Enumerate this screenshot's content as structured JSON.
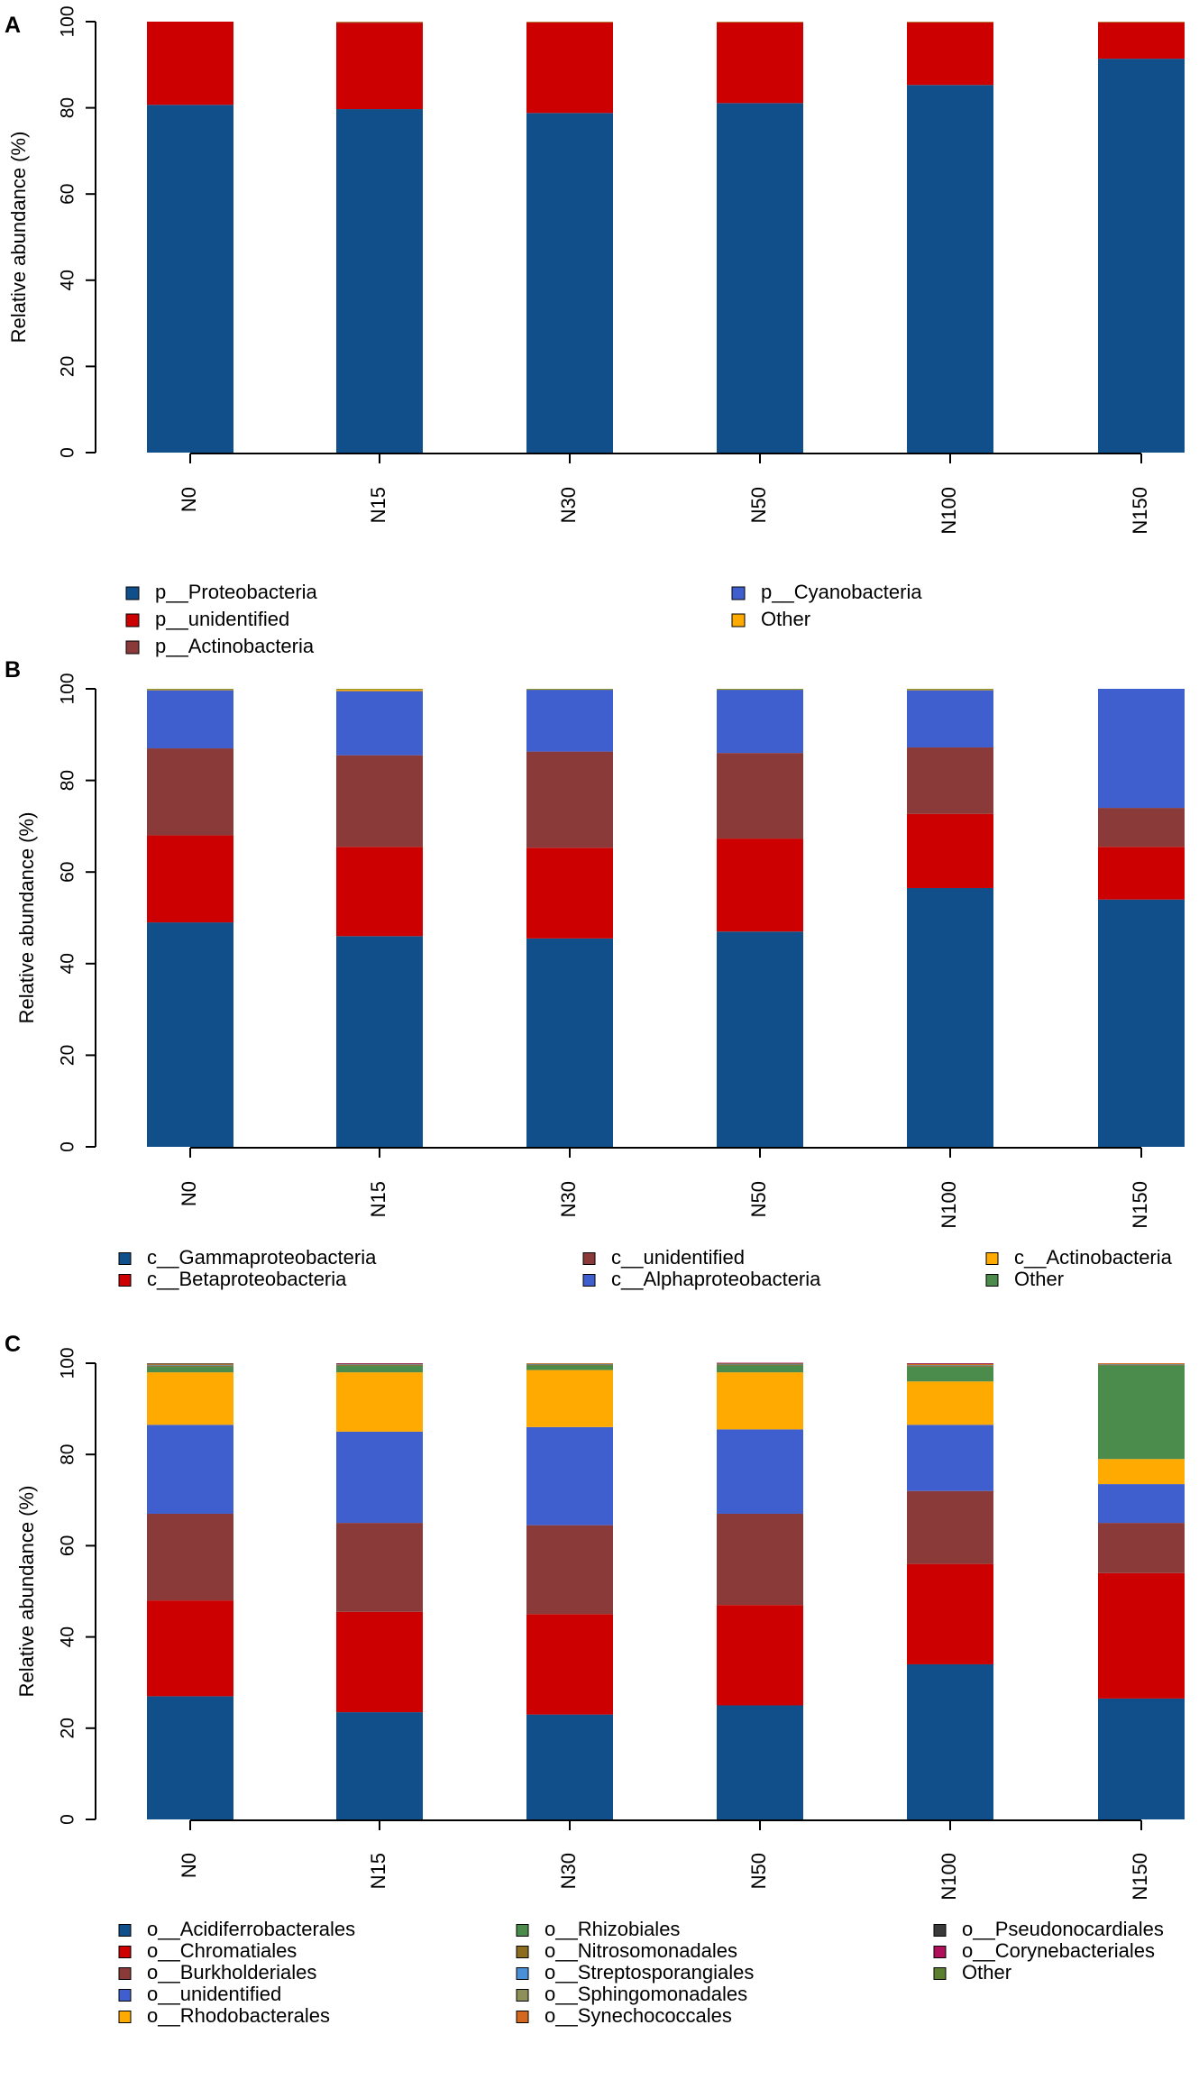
{
  "colors": {
    "axis": "#000000",
    "background": "#ffffff"
  },
  "chart_data": [
    {
      "type": "bar",
      "stacked": true,
      "panel_letter": "A",
      "categories": [
        "N0",
        "N15",
        "N30",
        "N50",
        "N100",
        "N150"
      ],
      "ylabel": "Relative abundance (%)",
      "ylim": [
        0,
        100
      ],
      "yticks": [
        "0",
        "20",
        "40",
        "60",
        "80",
        "100"
      ],
      "series": [
        {
          "name": "p__Proteobacteria",
          "color": "#114F8A",
          "values": [
            80.7,
            79.7,
            78.8,
            81.1,
            85.3,
            91.4
          ]
        },
        {
          "name": "p__unidentified",
          "color": "#CC0000",
          "values": [
            19.3,
            20.0,
            21.0,
            18.7,
            14.5,
            8.4
          ]
        },
        {
          "name": "p__Actinobacteria",
          "color": "#8B3A3A",
          "values": [
            0.0,
            0.2,
            0.1,
            0.1,
            0.1,
            0.1
          ]
        },
        {
          "name": "p__Cyanobacteria",
          "color": "#3F5FCF",
          "values": [
            0.0,
            0.05,
            0.05,
            0.05,
            0.05,
            0.05
          ]
        },
        {
          "name": "Other",
          "color": "#FFAA00",
          "values": [
            0.0,
            0.05,
            0.05,
            0.05,
            0.05,
            0.05
          ]
        }
      ],
      "legend": {
        "columns": [
          [
            "p__Proteobacteria",
            "p__unidentified",
            "p__Actinobacteria"
          ],
          [
            "p__Cyanobacteria",
            "Other"
          ]
        ]
      }
    },
    {
      "type": "bar",
      "stacked": true,
      "panel_letter": "B",
      "categories": [
        "N0",
        "N15",
        "N30",
        "N50",
        "N100",
        "N150"
      ],
      "ylabel": "Relative abundance (%)",
      "ylim": [
        0,
        100
      ],
      "yticks": [
        "0",
        "20",
        "40",
        "60",
        "80",
        "100"
      ],
      "series": [
        {
          "name": "c__Gammaproteobacteria",
          "color": "#114F8A",
          "values": [
            49.0,
            46.0,
            45.5,
            47.0,
            56.5,
            54.0
          ]
        },
        {
          "name": "c__Betaproteobacteria",
          "color": "#CC0000",
          "values": [
            19.0,
            19.5,
            19.8,
            20.3,
            16.2,
            11.5
          ]
        },
        {
          "name": "c__unidentified",
          "color": "#8B3A3A",
          "values": [
            19.0,
            20.0,
            21.0,
            18.7,
            14.5,
            8.5
          ]
        },
        {
          "name": "c__Alphaproteobacteria",
          "color": "#3F5FCF",
          "values": [
            12.7,
            14.0,
            13.5,
            13.8,
            12.5,
            26.0
          ]
        },
        {
          "name": "c__Actinobacteria",
          "color": "#FFAA00",
          "values": [
            0.2,
            0.4,
            0.1,
            0.1,
            0.2,
            0.0
          ]
        },
        {
          "name": "Other",
          "color": "#4B8B4B",
          "values": [
            0.1,
            0.1,
            0.1,
            0.1,
            0.1,
            0.0
          ]
        }
      ],
      "legend": {
        "columns": [
          [
            "c__Gammaproteobacteria",
            "c__Betaproteobacteria"
          ],
          [
            "c__unidentified",
            "c__Alphaproteobacteria"
          ],
          [
            "c__Actinobacteria",
            "Other"
          ]
        ]
      }
    },
    {
      "type": "bar",
      "stacked": true,
      "panel_letter": "C",
      "categories": [
        "N0",
        "N15",
        "N30",
        "N50",
        "N100",
        "N150"
      ],
      "ylabel": "Relative abundance (%)",
      "ylim": [
        0,
        100
      ],
      "yticks": [
        "0",
        "20",
        "40",
        "60",
        "80",
        "100"
      ],
      "series": [
        {
          "name": "o__Acidiferrobacterales",
          "color": "#114F8A",
          "values": [
            27.0,
            23.5,
            23.0,
            25.0,
            34.0,
            26.5
          ]
        },
        {
          "name": "o__Chromatiales",
          "color": "#CC0000",
          "values": [
            21.0,
            22.0,
            22.0,
            22.0,
            22.0,
            27.5
          ]
        },
        {
          "name": "o__Burkholderiales",
          "color": "#8B3A3A",
          "values": [
            19.0,
            19.5,
            19.5,
            20.0,
            16.0,
            11.0
          ]
        },
        {
          "name": "o__unidentified",
          "color": "#3F5FCF",
          "values": [
            19.5,
            20.0,
            21.5,
            18.5,
            14.5,
            8.5
          ]
        },
        {
          "name": "o__Rhodobacterales",
          "color": "#FFAA00",
          "values": [
            11.5,
            13.0,
            12.5,
            12.5,
            9.5,
            5.5
          ]
        },
        {
          "name": "o__Rhizobiales",
          "color": "#4B8B4B",
          "values": [
            1.2,
            1.4,
            1.0,
            1.5,
            3.2,
            20.5
          ]
        },
        {
          "name": "o__Nitrosomonadales",
          "color": "#8C6D1F",
          "values": [
            0.2,
            0.2,
            0.2,
            0.2,
            0.2,
            0.1
          ]
        },
        {
          "name": "o__Streptosporangiales",
          "color": "#4A90D9",
          "values": [
            0.1,
            0.1,
            0.1,
            0.1,
            0.1,
            0.1
          ]
        },
        {
          "name": "o__Sphingomonadales",
          "color": "#8F8F5A",
          "values": [
            0.2,
            0.1,
            0.1,
            0.1,
            0.1,
            0.1
          ]
        },
        {
          "name": "o__Synechococcales",
          "color": "#D2691E",
          "values": [
            0.1,
            0.1,
            0.1,
            0.1,
            0.3,
            0.2
          ]
        },
        {
          "name": "o__Pseudonocardiales",
          "color": "#3A3A3A",
          "values": [
            0.1,
            0.05,
            0.0,
            0.05,
            0.05,
            0.0
          ]
        },
        {
          "name": "o__Corynebacteriales",
          "color": "#B0105A",
          "values": [
            0.05,
            0.05,
            0.0,
            0.05,
            0.05,
            0.0
          ]
        },
        {
          "name": "Other",
          "color": "#5C7F2F",
          "values": [
            0.05,
            0.0,
            0.0,
            0.0,
            0.0,
            0.0
          ]
        }
      ],
      "legend": {
        "columns": [
          [
            "o__Acidiferrobacterales",
            "o__Chromatiales",
            "o__Burkholderiales",
            "o__unidentified",
            "o__Rhodobacterales"
          ],
          [
            "o__Rhizobiales",
            "o__Nitrosomonadales",
            "o__Streptosporangiales",
            "o__Sphingomonadales",
            "o__Synechococcales"
          ],
          [
            "o__Pseudonocardiales",
            "o__Corynebacteriales",
            "Other"
          ]
        ]
      }
    }
  ]
}
